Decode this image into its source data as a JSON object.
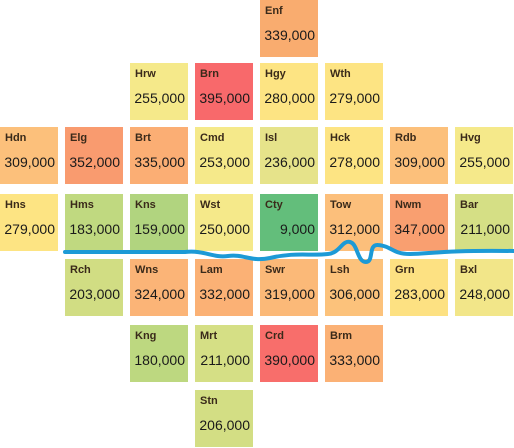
{
  "boroughs": [
    {
      "code": "Enf",
      "value": "339,000",
      "color": "#f9ac6f"
    },
    {
      "code": "Hrw",
      "value": "255,000",
      "color": "#f5e98a"
    },
    {
      "code": "Brn",
      "value": "395,000",
      "color": "#f8696b"
    },
    {
      "code": "Hgy",
      "value": "280,000",
      "color": "#fde483"
    },
    {
      "code": "Wth",
      "value": "279,000",
      "color": "#fde483"
    },
    {
      "code": "Hdn",
      "value": "309,000",
      "color": "#fcc07b"
    },
    {
      "code": "Elg",
      "value": "352,000",
      "color": "#f99b6f"
    },
    {
      "code": "Brt",
      "value": "335,000",
      "color": "#fbae74"
    },
    {
      "code": "Cmd",
      "value": "253,000",
      "color": "#f5e98a"
    },
    {
      "code": "Isl",
      "value": "236,000",
      "color": "#e6e38a"
    },
    {
      "code": "Hck",
      "value": "278,000",
      "color": "#fde483"
    },
    {
      "code": "Rdb",
      "value": "309,000",
      "color": "#fcc07b"
    },
    {
      "code": "Hvg",
      "value": "255,000",
      "color": "#f5e98a"
    },
    {
      "code": "Hns",
      "value": "279,000",
      "color": "#fde483"
    },
    {
      "code": "Hms",
      "value": "183,000",
      "color": "#c0d980"
    },
    {
      "code": "Kns",
      "value": "159,000",
      "color": "#b1d47f"
    },
    {
      "code": "Wst",
      "value": "250,000",
      "color": "#f5e98a"
    },
    {
      "code": "Cty",
      "value": "9,000",
      "color": "#63be7b"
    },
    {
      "code": "Tow",
      "value": "312,000",
      "color": "#fcbf7b"
    },
    {
      "code": "Nwm",
      "value": "347,000",
      "color": "#f99f70"
    },
    {
      "code": "Bar",
      "value": "211,000",
      "color": "#d5df85"
    },
    {
      "code": "Rch",
      "value": "203,000",
      "color": "#d1dd83"
    },
    {
      "code": "Wns",
      "value": "324,000",
      "color": "#fbb477"
    },
    {
      "code": "Lam",
      "value": "332,000",
      "color": "#fbb175"
    },
    {
      "code": "Swr",
      "value": "319,000",
      "color": "#fbb978"
    },
    {
      "code": "Lsh",
      "value": "306,000",
      "color": "#fcc27b"
    },
    {
      "code": "Grn",
      "value": "283,000",
      "color": "#fde182"
    },
    {
      "code": "Bxl",
      "value": "248,000",
      "color": "#f2e689"
    },
    {
      "code": "Kng",
      "value": "180,000",
      "color": "#bdd880"
    },
    {
      "code": "Mrt",
      "value": "211,000",
      "color": "#d5df85"
    },
    {
      "code": "Crd",
      "value": "390,000",
      "color": "#f86e6b"
    },
    {
      "code": "Brm",
      "value": "333,000",
      "color": "#fbb175"
    },
    {
      "code": "Stn",
      "value": "206,000",
      "color": "#d3de84"
    }
  ],
  "river": {
    "name": "",
    "color": "#1c9ad6"
  }
}
